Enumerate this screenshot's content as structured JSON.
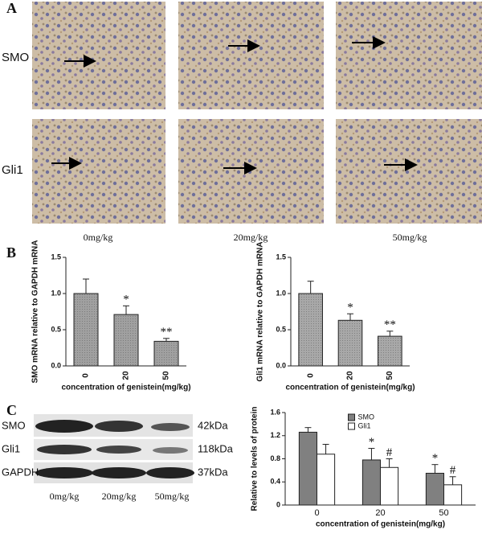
{
  "panel_labels": [
    "A",
    "B",
    "C"
  ],
  "panel_a": {
    "rows": [
      "SMO",
      "Gli1"
    ],
    "columns": [
      "0mg/kg",
      "20mg/kg",
      "50mg/kg"
    ]
  },
  "blot": {
    "rows": [
      "SMO",
      "Gli1",
      "GAPDH"
    ],
    "sizes": [
      "42kDa",
      "118kDa",
      "37kDa"
    ],
    "lanes": [
      "0mg/kg",
      "20mg/kg",
      "50mg/kg"
    ]
  },
  "chart_data": [
    {
      "type": "bar",
      "ylabel": "SMO mRNA relative to GAPDH mRNA",
      "xlabel": "concentration of genistein(mg/kg)",
      "categories": [
        "0",
        "20",
        "50"
      ],
      "values": [
        1.0,
        0.71,
        0.34
      ],
      "errors": [
        0.2,
        0.12,
        0.04
      ],
      "annotations": [
        null,
        "*",
        "**"
      ],
      "color": "#a0a0a0",
      "ylim": [
        0,
        1.5
      ],
      "yticks": [
        {
          "value": 0,
          "label": "0.0"
        },
        0.5,
        {
          "value": 1,
          "label": "1.0"
        },
        1.5
      ]
    },
    {
      "type": "bar",
      "ylabel": "Gli1 mRNA relative to GAPDH mRNA",
      "xlabel": "concentration of genistein(mg/kg)",
      "categories": [
        "0",
        "20",
        "50"
      ],
      "values": [
        1.0,
        0.63,
        0.41
      ],
      "errors": [
        0.17,
        0.09,
        0.07
      ],
      "annotations": [
        null,
        "*",
        "**"
      ],
      "color": "#a8a8a8",
      "ylim": [
        0,
        1.5
      ],
      "yticks": [
        {
          "value": 0,
          "label": "0.0"
        },
        0.5,
        {
          "value": 1,
          "label": "1.0"
        },
        1.5
      ]
    },
    {
      "type": "bar",
      "ylabel": "Relative to levels of protein",
      "xlabel": "concentration of genistein(mg/kg)",
      "categories": [
        "0",
        "20",
        "50"
      ],
      "series": [
        {
          "name": "SMO",
          "color": "#808080",
          "values": [
            1.26,
            0.78,
            0.55
          ],
          "errors": [
            0.08,
            0.2,
            0.15
          ],
          "annotations": [
            null,
            "*",
            "*"
          ]
        },
        {
          "name": "Gli1",
          "color": "#ffffff",
          "values": [
            0.88,
            0.65,
            0.35
          ],
          "errors": [
            0.17,
            0.15,
            0.14
          ],
          "annotations": [
            null,
            "#",
            "#"
          ]
        }
      ],
      "legend": "upper center",
      "ylim": [
        0,
        1.6
      ],
      "yticks": [
        0,
        0.4,
        0.8,
        1.2,
        1.6
      ]
    }
  ]
}
